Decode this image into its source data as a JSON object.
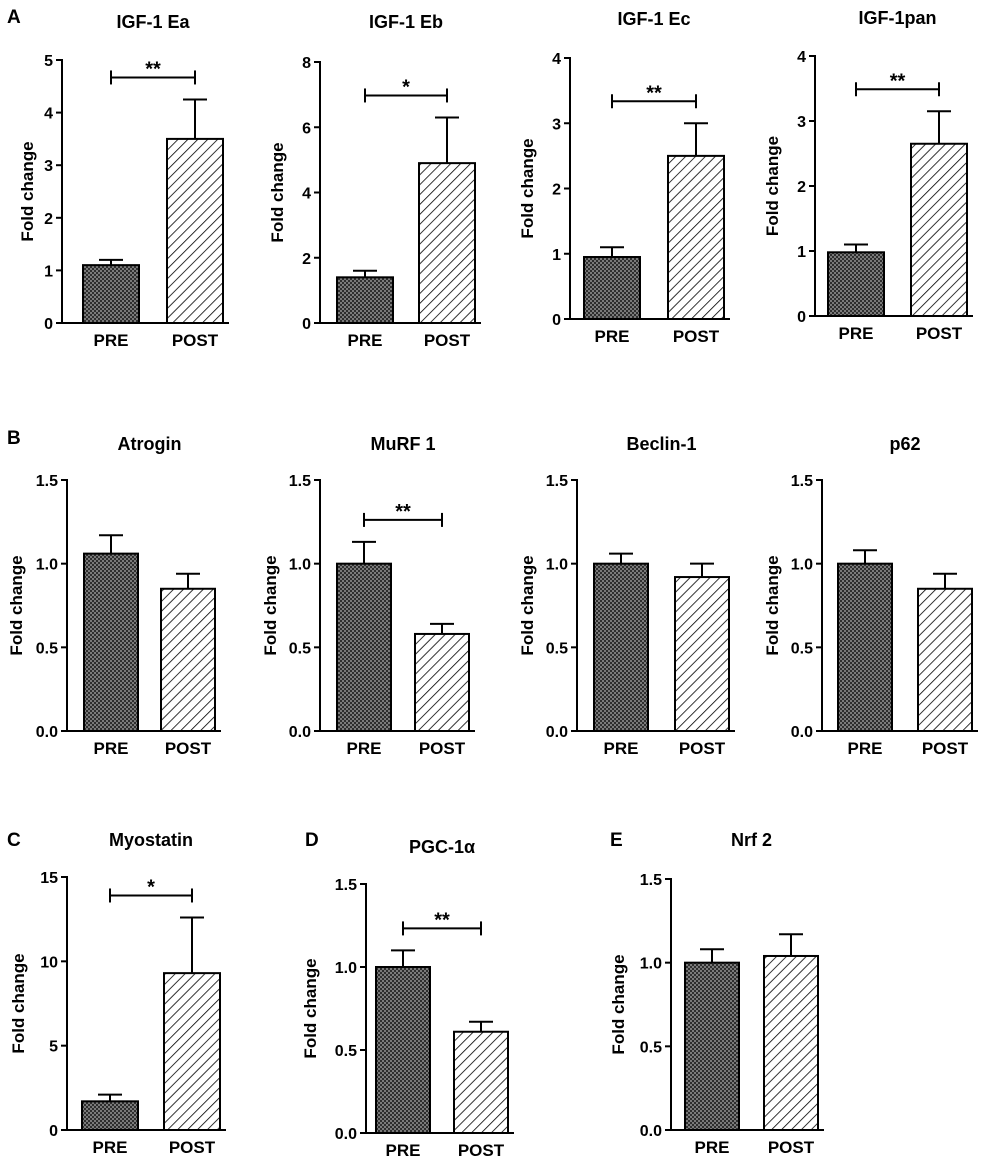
{
  "figure": {
    "y_axis_label": "Fold change",
    "colors": {
      "pre_fill": "#5a5a5a",
      "post_fill": "#ffffff",
      "ink": "#000000"
    }
  },
  "panels": [
    {
      "letter": "A"
    },
    {
      "letter": "B"
    },
    {
      "letter": "C"
    },
    {
      "letter": "D"
    },
    {
      "letter": "E"
    }
  ],
  "chart_data": [
    {
      "type": "bar",
      "panel": "A",
      "title": "IGF-1 Ea",
      "ylabel": "Fold change",
      "categories": [
        "PRE",
        "POST"
      ],
      "values": [
        1.1,
        3.5
      ],
      "errors": [
        0.1,
        0.75
      ],
      "ylim": [
        0,
        5
      ],
      "yticks": [
        0,
        1,
        2,
        3,
        4,
        5
      ],
      "tick_labels": [
        "0",
        "1",
        "2",
        "3",
        "4",
        "5"
      ],
      "significance": "**"
    },
    {
      "type": "bar",
      "panel": "A",
      "title": "IGF-1 Eb",
      "ylabel": "Fold change",
      "categories": [
        "PRE",
        "POST"
      ],
      "values": [
        1.4,
        4.9
      ],
      "errors": [
        0.2,
        1.4
      ],
      "ylim": [
        0,
        8
      ],
      "yticks": [
        0,
        2,
        4,
        6,
        8
      ],
      "tick_labels": [
        "0",
        "2",
        "4",
        "6",
        "8"
      ],
      "significance": "*"
    },
    {
      "type": "bar",
      "panel": "A",
      "title": "IGF-1 Ec",
      "ylabel": "Fold change",
      "categories": [
        "PRE",
        "POST"
      ],
      "values": [
        0.95,
        2.5
      ],
      "errors": [
        0.15,
        0.5
      ],
      "ylim": [
        0,
        4
      ],
      "yticks": [
        0,
        1,
        2,
        3,
        4
      ],
      "tick_labels": [
        "0",
        "1",
        "2",
        "3",
        "4"
      ],
      "significance": "**"
    },
    {
      "type": "bar",
      "panel": "A",
      "title": "IGF-1pan",
      "ylabel": "Fold change",
      "categories": [
        "PRE",
        "POST"
      ],
      "values": [
        0.98,
        2.65
      ],
      "errors": [
        0.12,
        0.5
      ],
      "ylim": [
        0,
        4
      ],
      "yticks": [
        0,
        1,
        2,
        3,
        4
      ],
      "tick_labels": [
        "0",
        "1",
        "2",
        "3",
        "4"
      ],
      "significance": "**"
    },
    {
      "type": "bar",
      "panel": "B",
      "title": "Atrogin",
      "ylabel": "Fold change",
      "categories": [
        "PRE",
        "POST"
      ],
      "values": [
        1.06,
        0.85
      ],
      "errors": [
        0.11,
        0.09
      ],
      "ylim": [
        0,
        1.5
      ],
      "yticks": [
        0,
        0.5,
        1.0,
        1.5
      ],
      "tick_labels": [
        "0.0",
        "0.5",
        "1.0",
        "1.5"
      ],
      "significance": ""
    },
    {
      "type": "bar",
      "panel": "B",
      "title": "MuRF 1",
      "ylabel": "Fold change",
      "categories": [
        "PRE",
        "POST"
      ],
      "values": [
        1.0,
        0.58
      ],
      "errors": [
        0.13,
        0.06
      ],
      "ylim": [
        0,
        1.5
      ],
      "yticks": [
        0,
        0.5,
        1.0,
        1.5
      ],
      "tick_labels": [
        "0.0",
        "0.5",
        "1.0",
        "1.5"
      ],
      "significance": "**"
    },
    {
      "type": "bar",
      "panel": "B",
      "title": "Beclin-1",
      "ylabel": "Fold change",
      "categories": [
        "PRE",
        "POST"
      ],
      "values": [
        1.0,
        0.92
      ],
      "errors": [
        0.06,
        0.08
      ],
      "ylim": [
        0,
        1.5
      ],
      "yticks": [
        0,
        0.5,
        1.0,
        1.5
      ],
      "tick_labels": [
        "0.0",
        "0.5",
        "1.0",
        "1.5"
      ],
      "significance": ""
    },
    {
      "type": "bar",
      "panel": "B",
      "title": "p62",
      "ylabel": "Fold change",
      "categories": [
        "PRE",
        "POST"
      ],
      "values": [
        1.0,
        0.85
      ],
      "errors": [
        0.08,
        0.09
      ],
      "ylim": [
        0,
        1.5
      ],
      "yticks": [
        0,
        0.5,
        1.0,
        1.5
      ],
      "tick_labels": [
        "0.0",
        "0.5",
        "1.0",
        "1.5"
      ],
      "significance": ""
    },
    {
      "type": "bar",
      "panel": "C",
      "title": "Myostatin",
      "ylabel": "Fold change",
      "categories": [
        "PRE",
        "POST"
      ],
      "values": [
        1.7,
        9.3
      ],
      "errors": [
        0.4,
        3.3
      ],
      "ylim": [
        0,
        15
      ],
      "yticks": [
        0,
        5,
        10,
        15
      ],
      "tick_labels": [
        "0",
        "5",
        "10",
        "15"
      ],
      "significance": "*"
    },
    {
      "type": "bar",
      "panel": "D",
      "title": "PGC-1α",
      "ylabel": "Fold change",
      "categories": [
        "PRE",
        "POST"
      ],
      "values": [
        1.0,
        0.61
      ],
      "errors": [
        0.1,
        0.06
      ],
      "ylim": [
        0,
        1.5
      ],
      "yticks": [
        0,
        0.5,
        1.0,
        1.5
      ],
      "tick_labels": [
        "0.0",
        "0.5",
        "1.0",
        "1.5"
      ],
      "significance": "**"
    },
    {
      "type": "bar",
      "panel": "E",
      "title": "Nrf 2",
      "ylabel": "Fold change",
      "categories": [
        "PRE",
        "POST"
      ],
      "values": [
        1.0,
        1.04
      ],
      "errors": [
        0.08,
        0.13
      ],
      "ylim": [
        0,
        1.5
      ],
      "yticks": [
        0,
        0.5,
        1.0,
        1.5
      ],
      "tick_labels": [
        "0.0",
        "0.5",
        "1.0",
        "1.5"
      ],
      "significance": ""
    }
  ]
}
